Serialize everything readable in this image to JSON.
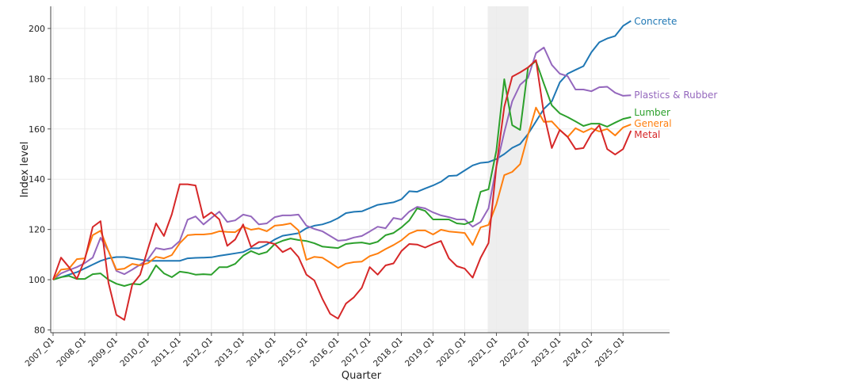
{
  "chart_data": {
    "type": "line",
    "title": "",
    "xlabel": "Quarter",
    "ylabel": "Index level",
    "ylim": [
      78.9,
      208.8
    ],
    "yticks": [
      80,
      100,
      120,
      140,
      160,
      180,
      200
    ],
    "grid": true,
    "legend": "direct labels at line ends (right)",
    "shaded_region": {
      "start": "2020_Q4",
      "end": "2022_Q1",
      "color": "#e8e8e8"
    },
    "xtick_labels": [
      "2007_Q1",
      "2008_Q1",
      "2009_Q1",
      "2010_Q1",
      "2011_Q1",
      "2012_Q1",
      "2013_Q1",
      "2014_Q1",
      "2015_Q1",
      "2016_Q1",
      "2017_Q1",
      "2018_Q1",
      "2019_Q1",
      "2020_Q1",
      "2021_Q1",
      "2022_Q1",
      "2023_Q1",
      "2024_Q1",
      "2025_Q1"
    ],
    "categories": [
      "2007_Q1",
      "2007_Q2",
      "2007_Q3",
      "2007_Q4",
      "2008_Q1",
      "2008_Q2",
      "2008_Q3",
      "2008_Q4",
      "2009_Q1",
      "2009_Q2",
      "2009_Q3",
      "2009_Q4",
      "2010_Q1",
      "2010_Q2",
      "2010_Q3",
      "2010_Q4",
      "2011_Q1",
      "2011_Q2",
      "2011_Q3",
      "2011_Q4",
      "2012_Q1",
      "2012_Q2",
      "2012_Q3",
      "2012_Q4",
      "2013_Q1",
      "2013_Q2",
      "2013_Q3",
      "2013_Q4",
      "2014_Q1",
      "2014_Q2",
      "2014_Q3",
      "2014_Q4",
      "2015_Q1",
      "2015_Q2",
      "2015_Q3",
      "2015_Q4",
      "2016_Q1",
      "2016_Q2",
      "2016_Q3",
      "2016_Q4",
      "2017_Q1",
      "2017_Q2",
      "2017_Q3",
      "2017_Q4",
      "2018_Q1",
      "2018_Q2",
      "2018_Q3",
      "2018_Q4",
      "2019_Q1",
      "2019_Q2",
      "2019_Q3",
      "2019_Q4",
      "2020_Q1",
      "2020_Q2",
      "2020_Q3",
      "2020_Q4",
      "2021_Q1",
      "2021_Q2",
      "2021_Q3",
      "2021_Q4",
      "2022_Q1",
      "2022_Q2",
      "2022_Q3",
      "2022_Q4",
      "2023_Q1",
      "2023_Q2",
      "2023_Q3",
      "2023_Q4",
      "2024_Q1",
      "2024_Q2",
      "2024_Q3",
      "2024_Q4",
      "2025_Q1",
      "2025_Q2"
    ],
    "series": [
      {
        "name": "Concrete",
        "color": "#1f77b4",
        "values": [
          100,
          101,
          102,
          103,
          104.5,
          106,
          107.5,
          108.5,
          109,
          109,
          108.5,
          108,
          107.5,
          107.5,
          107.5,
          107.5,
          107.5,
          108.5,
          108.7,
          108.8,
          108.9,
          109.5,
          110,
          110.5,
          111,
          112.5,
          112.5,
          114,
          116,
          117.5,
          118,
          118.5,
          120.5,
          121.5,
          122,
          123,
          124.5,
          126.5,
          127,
          127.2,
          128.5,
          129.8,
          130.3,
          130.8,
          132,
          135.2,
          135,
          136.3,
          137.5,
          139,
          141.3,
          141.5,
          143.5,
          145.5,
          146.5,
          146.8,
          148,
          150,
          152.5,
          154,
          158,
          163,
          168,
          171,
          178.5,
          182,
          183.5,
          185,
          190.5,
          194.5,
          196,
          197,
          201,
          203
        ]
      },
      {
        "name": "Plastics & Rubber",
        "color": "#9467bd",
        "values": [
          100,
          102.5,
          103.8,
          105,
          106.6,
          108.8,
          116.7,
          111.4,
          103.5,
          102.2,
          104,
          106,
          108.2,
          112.6,
          112,
          112.6,
          115.4,
          123.9,
          125.2,
          122,
          124.6,
          127.1,
          123,
          123.6,
          125.9,
          125.2,
          122,
          122.4,
          124.9,
          125.6,
          125.6,
          125.9,
          121.5,
          120.2,
          119.3,
          117.4,
          115.5,
          115.8,
          116.8,
          117.4,
          119.2,
          121.1,
          120.5,
          124.6,
          124,
          127.1,
          129,
          128.4,
          126.8,
          125.6,
          124.9,
          124,
          124,
          121.1,
          123,
          128.4,
          145,
          158.7,
          171,
          177.6,
          180.4,
          190.2,
          192.4,
          185.5,
          182,
          181,
          175.7,
          175.7,
          175,
          176.6,
          176.8,
          174.4,
          173.2,
          173.4
        ]
      },
      {
        "name": "Lumber",
        "color": "#2ca02c",
        "values": [
          100,
          101,
          101.5,
          100.3,
          100.3,
          102.2,
          102.5,
          100,
          98.4,
          97.5,
          98.4,
          98.1,
          100.3,
          105.7,
          102.5,
          101,
          103.2,
          102.8,
          102,
          102.2,
          102,
          105,
          105,
          106.3,
          109.5,
          111.4,
          110.1,
          111,
          114.2,
          115.5,
          116.4,
          115.8,
          115.4,
          114.5,
          113.2,
          112.9,
          112.6,
          114.2,
          114.6,
          114.8,
          114.2,
          115.1,
          117.7,
          118.6,
          120.8,
          123.6,
          128.4,
          127.4,
          124,
          124,
          124,
          122.4,
          122.1,
          123.3,
          135,
          136,
          151.4,
          179.8,
          161.5,
          159.6,
          184.5,
          187,
          178,
          169.4,
          166.2,
          164.7,
          163,
          161.2,
          162.1,
          162.1,
          160.9,
          162.5,
          164,
          164.7
        ]
      },
      {
        "name": "General",
        "color": "#ff7f0e",
        "values": [
          100,
          104,
          104.4,
          108.2,
          108.5,
          117.7,
          119.5,
          111.4,
          104,
          104.4,
          106.3,
          105.7,
          106.6,
          109.1,
          108.5,
          109.8,
          114.5,
          117.7,
          118,
          118,
          118.3,
          119.3,
          119,
          118.9,
          121.1,
          119.9,
          120.4,
          119.3,
          121.5,
          121.8,
          122.4,
          119.6,
          107.9,
          109.1,
          108.8,
          106.8,
          104.7,
          106.4,
          107,
          107.2,
          109.4,
          110.4,
          112.2,
          113.8,
          115.7,
          118.3,
          119.6,
          119.6,
          118,
          119.9,
          119.2,
          118.9,
          118.6,
          113.8,
          120.8,
          121.8,
          130,
          141.6,
          142.9,
          146,
          157.7,
          168.5,
          162.8,
          163,
          159.6,
          156.8,
          160.3,
          158.7,
          160.2,
          159,
          160,
          157.4,
          160.6,
          161.8
        ]
      },
      {
        "name": "Metal",
        "color": "#d62728",
        "values": [
          100,
          108.8,
          105,
          100.3,
          108,
          121,
          123.3,
          98.8,
          86,
          84,
          98,
          102,
          112.5,
          122.4,
          117.4,
          126,
          138,
          138,
          137.5,
          124.6,
          126.8,
          124,
          113.5,
          116,
          122,
          113,
          115,
          115,
          114.2,
          111,
          112.6,
          109,
          102,
          99.7,
          92.5,
          86.4,
          84.5,
          90.5,
          93,
          96.8,
          105,
          102,
          105.7,
          106.5,
          111.4,
          114.2,
          114,
          112.8,
          114.2,
          115.4,
          108.5,
          105.4,
          104.4,
          100.8,
          108.7,
          114.6,
          145,
          168.8,
          180.8,
          182.5,
          184.5,
          187.4,
          166,
          152.4,
          159.6,
          156.8,
          152,
          152.4,
          158,
          161.5,
          152,
          149.8,
          152,
          159.3
        ]
      }
    ],
    "end_labels": {
      "Concrete": "Concrete",
      "Plastics & Rubber": "Plastics & Rubber",
      "Lumber": "Lumber",
      "General": "General",
      "Metal": "Metal"
    }
  }
}
